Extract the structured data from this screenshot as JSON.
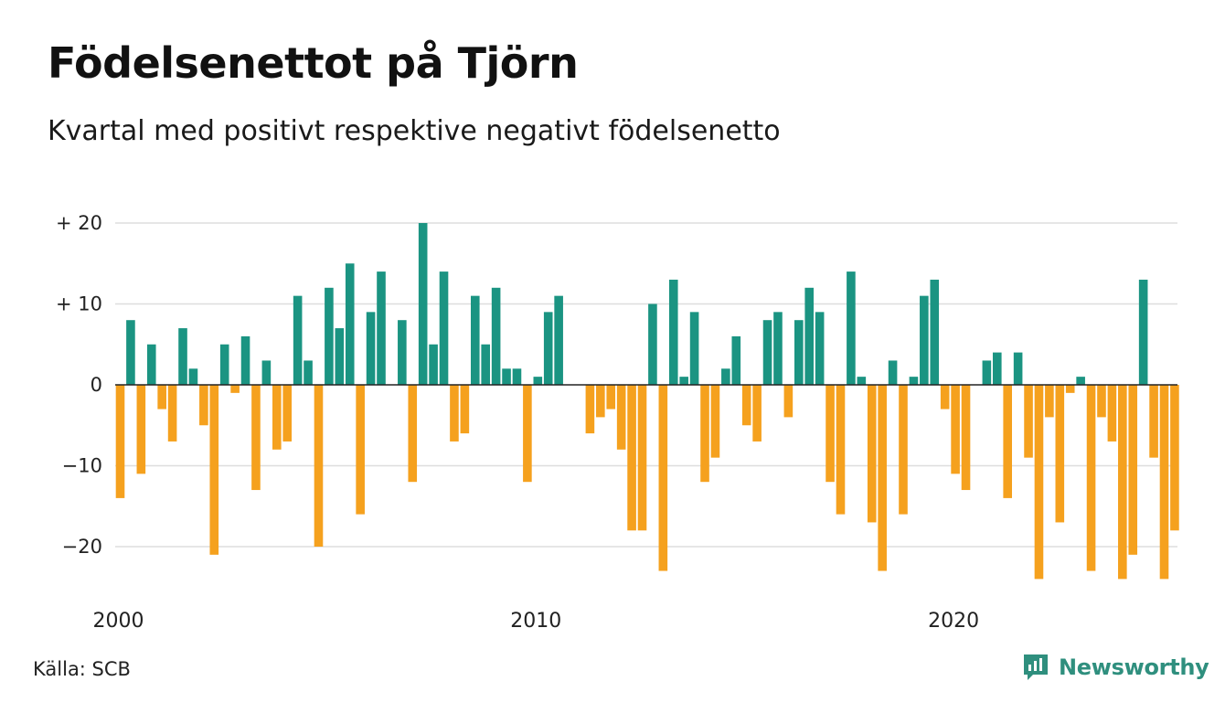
{
  "title": "Födelsenettot på Tjörn",
  "subtitle": "Kvartal med positivt respektive negativt födelsenetto",
  "source": "Källa: SCB",
  "brand": {
    "name": "Newsworthy",
    "icon": "newsworthy-logo-icon"
  },
  "colors": {
    "positive": "#1b9482",
    "negative": "#f5a11e",
    "grid": "#dedede",
    "axis": "#222222"
  },
  "chart_data": {
    "type": "bar",
    "x_start": "2000 Q1",
    "period": "quarter",
    "y_ticks": [
      {
        "value": 20,
        "label": "+ 20"
      },
      {
        "value": 10,
        "label": "+ 10"
      },
      {
        "value": 0,
        "label": "0"
      },
      {
        "value": -10,
        "label": "−10"
      },
      {
        "value": -20,
        "label": "−20"
      }
    ],
    "x_ticks": [
      {
        "year": 2000,
        "label": "2000"
      },
      {
        "year": 2010,
        "label": "2010"
      },
      {
        "year": 2020,
        "label": "2020"
      }
    ],
    "ylim": [
      -25,
      20
    ],
    "grid": true,
    "values": [
      -14,
      8,
      -11,
      5,
      -3,
      -7,
      7,
      2,
      -5,
      -21,
      5,
      -1,
      6,
      -13,
      3,
      -8,
      -7,
      11,
      3,
      -20,
      12,
      7,
      15,
      -16,
      9,
      14,
      0,
      8,
      -12,
      20,
      5,
      14,
      -7,
      -6,
      11,
      5,
      12,
      2,
      2,
      -12,
      1,
      9,
      11,
      0,
      0,
      -6,
      -4,
      -3,
      -8,
      -18,
      -18,
      10,
      -23,
      13,
      1,
      9,
      -12,
      -9,
      2,
      6,
      -5,
      -7,
      8,
      9,
      -4,
      8,
      12,
      9,
      -12,
      -16,
      14,
      1,
      -17,
      -23,
      3,
      -16,
      1,
      11,
      13,
      -3,
      -11,
      -13,
      0,
      3,
      4,
      -14,
      4,
      -9,
      -24,
      -4,
      -17,
      -1,
      1,
      -23,
      -4,
      -7,
      -24,
      -21,
      13,
      -9,
      -24,
      -18
    ]
  }
}
